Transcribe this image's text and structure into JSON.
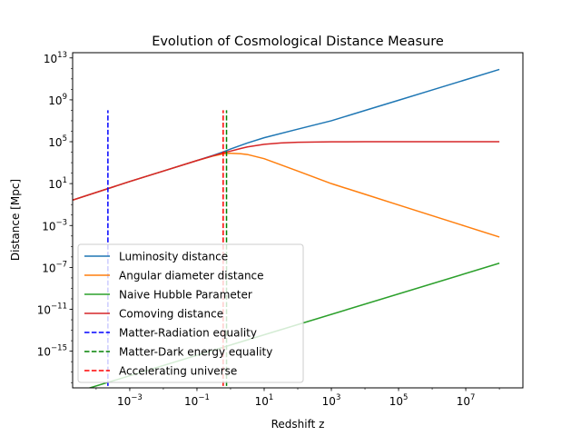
{
  "chart_data": {
    "type": "line",
    "title": "Evolution of Cosmological Distance Measure",
    "xlabel": "Redshift z",
    "ylabel": "Distance [Mpc]",
    "xscale": "log",
    "yscale": "log",
    "xlim_log10": [
      -4.7,
      8.7
    ],
    "ylim_log10": [
      -18.5,
      13.5
    ],
    "xticks": [
      {
        "exp": -3,
        "base": "10",
        "sup": "−3"
      },
      {
        "exp": -1,
        "base": "10",
        "sup": "−1"
      },
      {
        "exp": 1,
        "base": "10",
        "sup": "1"
      },
      {
        "exp": 3,
        "base": "10",
        "sup": "3"
      },
      {
        "exp": 5,
        "base": "10",
        "sup": "5"
      },
      {
        "exp": 7,
        "base": "10",
        "sup": "7"
      }
    ],
    "yticks": [
      {
        "exp": 13,
        "base": "10",
        "sup": "13"
      },
      {
        "exp": 9,
        "base": "10",
        "sup": "9"
      },
      {
        "exp": 5,
        "base": "10",
        "sup": "5"
      },
      {
        "exp": 1,
        "base": "10",
        "sup": "1"
      },
      {
        "exp": -3,
        "base": "10",
        "sup": "−3"
      },
      {
        "exp": -7,
        "base": "10",
        "sup": "−7"
      },
      {
        "exp": -11,
        "base": "10",
        "sup": "−11"
      },
      {
        "exp": -15,
        "base": "10",
        "sup": "−15"
      }
    ],
    "grid": false,
    "legend_position": "lower-left",
    "series": [
      {
        "name": "Luminosity distance",
        "color": "#1f77b4",
        "style": "solid",
        "x_log10": [
          -4.7,
          -3,
          -2,
          -1,
          -0.5,
          -0.2,
          0,
          0.5,
          1,
          2,
          3,
          4,
          5,
          6,
          7,
          8
        ],
        "y_log10": [
          -0.57,
          1.2,
          2.2,
          3.2,
          3.72,
          4.05,
          4.3,
          4.88,
          5.38,
          6.2,
          7.0,
          7.98,
          8.96,
          9.94,
          10.92,
          11.9
        ]
      },
      {
        "name": "Angular diameter distance",
        "color": "#ff7f0e",
        "style": "solid",
        "x_log10": [
          -4.7,
          -3,
          -2,
          -1,
          -0.5,
          -0.2,
          0,
          0.3,
          0.5,
          1,
          2,
          3,
          4,
          5,
          6,
          7,
          8
        ],
        "y_log10": [
          -0.57,
          1.2,
          2.2,
          3.2,
          3.65,
          3.85,
          3.9,
          3.85,
          3.78,
          3.38,
          2.2,
          1.0,
          -0.02,
          -1.04,
          -2.06,
          -3.08,
          -4.1
        ]
      },
      {
        "name": "Naive Hubble Parameter",
        "color": "#2ca02c",
        "style": "solid",
        "x_log10": [
          -4.7,
          8
        ],
        "y_log10": [
          -19.0,
          -6.6
        ]
      },
      {
        "name": "Comoving distance",
        "color": "#d62728",
        "style": "solid",
        "x_log10": [
          -4.7,
          -3,
          -2,
          -1,
          -0.5,
          -0.2,
          0,
          0.3,
          0.5,
          1,
          1.5,
          2,
          3,
          4,
          8
        ],
        "y_log10": [
          -0.57,
          1.2,
          2.2,
          3.2,
          3.68,
          3.95,
          4.1,
          4.35,
          4.5,
          4.75,
          4.88,
          4.95,
          4.99,
          5.0,
          5.0
        ]
      },
      {
        "name": "Matter-Radiation equality",
        "color": "#0000ff",
        "style": "dashed",
        "x_log10": [
          -3.65,
          -3.65
        ],
        "y_log10": [
          -19,
          8
        ]
      },
      {
        "name": "Matter-Dark energy equality",
        "color": "#008000",
        "style": "dashed",
        "x_log10": [
          -0.12,
          -0.12
        ],
        "y_log10": [
          -19,
          8
        ]
      },
      {
        "name": "Accelerating universe",
        "color": "#ff0000",
        "style": "dashed",
        "x_log10": [
          -0.22,
          -0.22
        ],
        "y_log10": [
          -19,
          8
        ]
      }
    ]
  }
}
